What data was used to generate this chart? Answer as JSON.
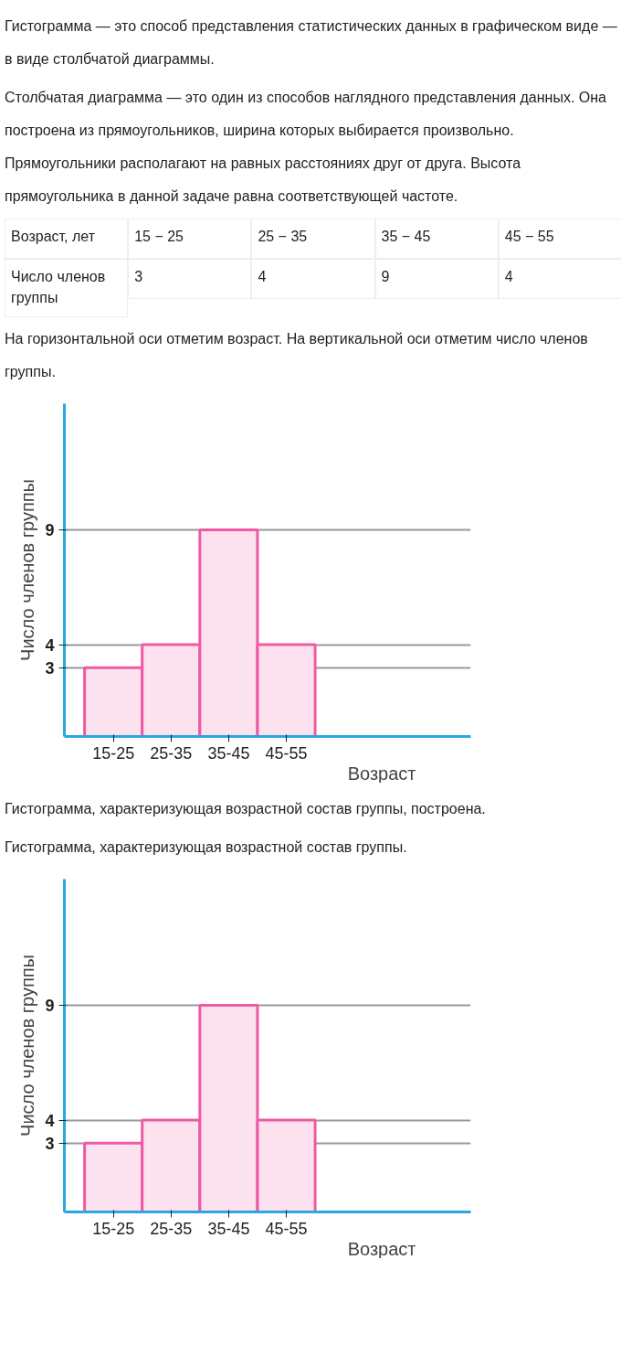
{
  "chart_data": [
    {
      "type": "bar",
      "xlabel": "Возраст",
      "ylabel": "Число членов группы",
      "annotations": [
        "Гистограмма — это способ представления статистических данных в графическом виде — в виде столбчатой диаграммы.",
        "Столбчатая диаграмма — это один из способов наглядного представления данных. Она построена из прямоугольников, ширина которых выбирается произвольно. Прямоугольники располагают на равных расстояниях друг от друга. Высота прямоугольника в данной задаче равна соответствующей частоте.",
        "Возраст, лет",
        "15 − 25",
        "25 − 35",
        "35 − 45",
        "45 − 55",
        "Число членов группы",
        "3",
        "4",
        "9",
        "4",
        "На горизонтальной оси отметим возраст. На вертикальной оси отметим число членов группы."
      ],
      "categories": [
        "15-25",
        "25-35",
        "35-45",
        "45-55"
      ],
      "values": [
        3,
        4,
        9,
        4
      ],
      "color": "#fce1ef",
      "ylim": [
        0,
        14.5
      ],
      "yticks": [
        3,
        4,
        9
      ],
      "grid": "y"
    },
    {
      "type": "bar",
      "xlabel": "Возраст",
      "ylabel": "Число членов группы",
      "annotations": [
        "Гистограмма, характеризующая возрастной состав группы, построена.",
        "Гистограмма, характеризующая возрастной состав группы."
      ],
      "categories": [
        "15-25",
        "25-35",
        "35-45",
        "45-55"
      ],
      "values": [
        3,
        4,
        9,
        4
      ],
      "color": "#fce1ef",
      "ylim": [
        0,
        14.5
      ],
      "yticks": [
        3,
        4,
        9
      ],
      "grid": "y"
    }
  ]
}
